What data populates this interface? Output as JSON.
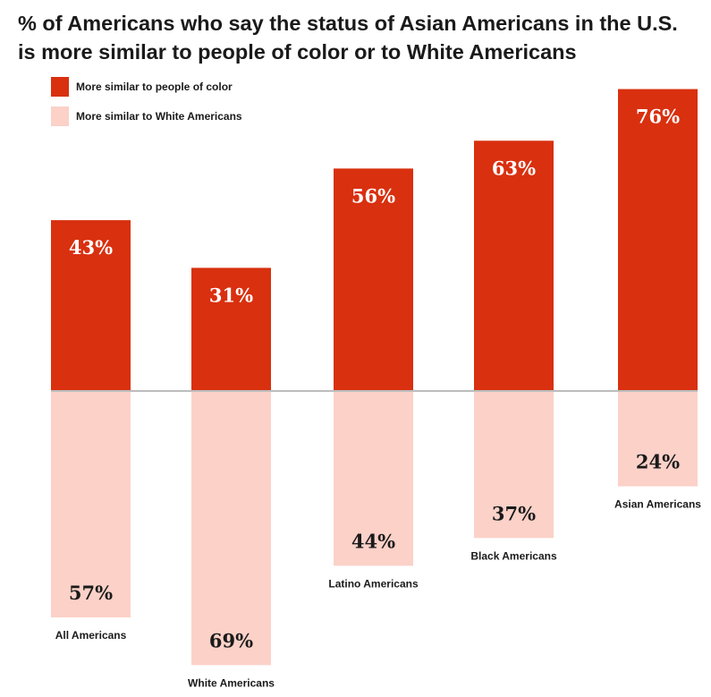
{
  "colors": {
    "people_of_color": "#d9300f",
    "white_americans": "#fbd1c8",
    "axis": "#bdbdbd",
    "label_on_dark": "#ffffff",
    "label_on_light": "#1a1a1a"
  },
  "chart_data": {
    "type": "bar",
    "title": "% of Americans who say the status of Asian Americans in the U.S. is more similar to people of color or to White Americans",
    "categories": [
      "All Americans",
      "White Americans",
      "Latino Americans",
      "Black Americans",
      "Asian Americans"
    ],
    "series": [
      {
        "name": "More similar to people of color",
        "values": [
          43,
          31,
          56,
          63,
          76
        ],
        "labels": [
          "43%",
          "31%",
          "56%",
          "63%",
          "76%"
        ]
      },
      {
        "name": "More similar to White Americans",
        "values": [
          57,
          69,
          44,
          37,
          24
        ],
        "labels": [
          "57%",
          "69%",
          "44%",
          "37%",
          "24%"
        ]
      }
    ],
    "orientation": "diverging-vertical",
    "legend_position": "top-left",
    "grid": false
  }
}
